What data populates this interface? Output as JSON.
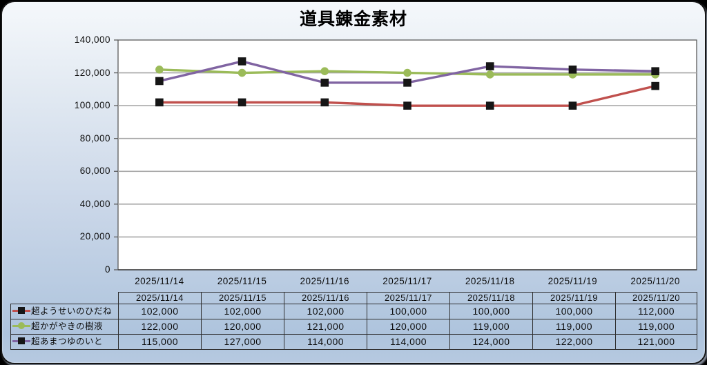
{
  "title": "道具錬金素材",
  "colors": {
    "frame_border": "#161616",
    "background_top": "#f5f8fb",
    "background_bottom": "#aec4dd",
    "plot_background": "#ffffff",
    "gridline": "#a6a6a6",
    "plot_border": "#5a5a5a",
    "axis_line": "#3c3c3c",
    "table_border": "#2e2e2e",
    "marker_black": "#161616"
  },
  "chart_data": {
    "type": "line",
    "title": "道具錬金素材",
    "categories": [
      "2025/11/14",
      "2025/11/15",
      "2025/11/16",
      "2025/11/17",
      "2025/11/18",
      "2025/11/19",
      "2025/11/20"
    ],
    "series": [
      {
        "name": "超ようせいのひだね",
        "color": "#c0504d",
        "marker": "square",
        "marker_color": "#161616",
        "values": [
          102000,
          102000,
          102000,
          100000,
          100000,
          100000,
          112000
        ]
      },
      {
        "name": "超かがやきの樹液",
        "color": "#9bbb59",
        "marker": "circle",
        "marker_color": "#9bbb59",
        "values": [
          122000,
          120000,
          121000,
          120000,
          119000,
          119000,
          119000
        ]
      },
      {
        "name": "超あまつゆのいと",
        "color": "#8064a2",
        "marker": "square",
        "marker_color": "#161616",
        "values": [
          115000,
          127000,
          114000,
          114000,
          124000,
          122000,
          121000
        ]
      }
    ],
    "ylim": [
      0,
      140000
    ],
    "ytick_step": 20000,
    "ytick_labels": [
      "0",
      "20,000",
      "40,000",
      "60,000",
      "80,000",
      "100,000",
      "120,000",
      "140,000"
    ],
    "xlabel": "",
    "ylabel": "",
    "grid": true,
    "legend_position": "table-left"
  },
  "table": {
    "headers": [
      "2025/11/14",
      "2025/11/15",
      "2025/11/16",
      "2025/11/17",
      "2025/11/18",
      "2025/11/19",
      "2025/11/20"
    ],
    "rows": [
      {
        "label": "超ようせいのひだね",
        "values": [
          "102,000",
          "102,000",
          "102,000",
          "100,000",
          "100,000",
          "100,000",
          "112,000"
        ]
      },
      {
        "label": "超かがやきの樹液",
        "values": [
          "122,000",
          "120,000",
          "121,000",
          "120,000",
          "119,000",
          "119,000",
          "119,000"
        ]
      },
      {
        "label": "超あまつゆのいと",
        "values": [
          "115,000",
          "127,000",
          "114,000",
          "114,000",
          "124,000",
          "122,000",
          "121,000"
        ]
      }
    ]
  }
}
